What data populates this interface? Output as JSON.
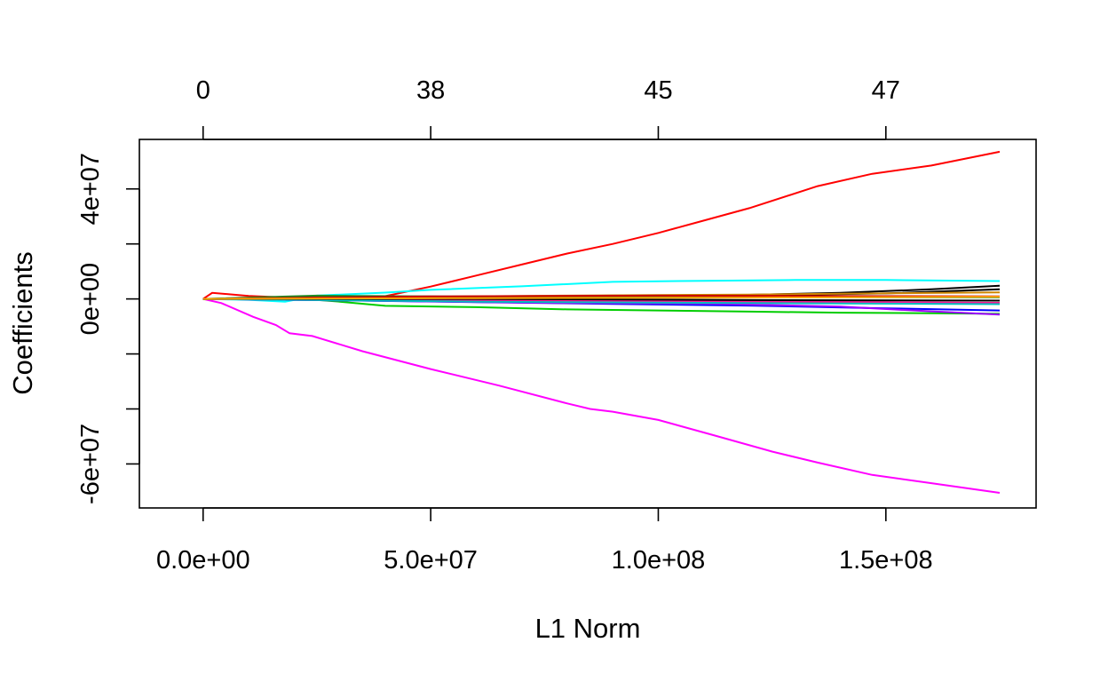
{
  "chart_data": {
    "type": "line",
    "title": "",
    "xlabel": "L1 Norm",
    "ylabel": "Coefficients",
    "xlim": [
      -14000000,
      183000000
    ],
    "ylim": [
      -76000000,
      58000000
    ],
    "x_ticks": [
      0,
      50000000,
      100000000,
      150000000
    ],
    "x_tick_labels": [
      "0.0e+00",
      "5.0e+07",
      "1.0e+08",
      "1.5e+08"
    ],
    "y_ticks": [
      40000000,
      20000000,
      0,
      -20000000,
      -40000000,
      -60000000
    ],
    "y_tick_labels": [
      "4e+07",
      "",
      "0e+00",
      "",
      "",
      "-6e+07"
    ],
    "top_axis": {
      "tick_x": [
        0,
        50000000,
        100000000,
        150000000
      ],
      "labels": [
        "0",
        "38",
        "45",
        "47"
      ]
    },
    "grid": false,
    "legend": "none",
    "series": [
      {
        "color": "#FF0000",
        "x": [
          0,
          2000000,
          10000000,
          20000000,
          40000000,
          50000000,
          60000000,
          70000000,
          80000000,
          90000000,
          100000000,
          110000000,
          120000000,
          135000000,
          147000000,
          160000000,
          175000000
        ],
        "y": [
          0,
          2200000,
          1100000,
          400000,
          1000000,
          4500000,
          8500000,
          12500000,
          16500000,
          20000000,
          24000000,
          28500000,
          33000000,
          41000000,
          45500000,
          48500000,
          53500000
        ]
      },
      {
        "color": "#FF00FF",
        "x": [
          0,
          4000000,
          11000000,
          16000000,
          19000000,
          24000000,
          35000000,
          50000000,
          65000000,
          80000000,
          85000000,
          90000000,
          100000000,
          112000000,
          125000000,
          135000000,
          147000000,
          160000000,
          175000000
        ],
        "y": [
          0,
          -1500000,
          -6500000,
          -9500000,
          -12500000,
          -13500000,
          -19000000,
          -25500000,
          -31500000,
          -38000000,
          -40000000,
          -41000000,
          -44000000,
          -49500000,
          -55500000,
          -59500000,
          -64000000,
          -67000000,
          -70500000
        ]
      },
      {
        "color": "#00FFFF",
        "x": [
          0,
          10000000,
          18000000,
          25000000,
          40000000,
          50000000,
          70000000,
          90000000,
          110000000,
          130000000,
          150000000,
          175000000
        ],
        "y": [
          0,
          -300000,
          -1000000,
          1200000,
          2300000,
          3300000,
          4600000,
          6200000,
          6600000,
          6900000,
          6900000,
          6500000
        ]
      },
      {
        "color": "#00CD00",
        "x": [
          0,
          20000000,
          30000000,
          40000000,
          60000000,
          80000000,
          100000000,
          120000000,
          140000000,
          160000000,
          175000000
        ],
        "y": [
          0,
          300000,
          -1000000,
          -2500000,
          -3000000,
          -3800000,
          -4200000,
          -4600000,
          -5000000,
          -5200000,
          -5400000
        ]
      },
      {
        "color": "#000000",
        "x": [
          0,
          30000000,
          60000000,
          90000000,
          120000000,
          140000000,
          160000000,
          175000000
        ],
        "y": [
          0,
          700000,
          800000,
          1200000,
          1500000,
          2200000,
          3500000,
          4800000
        ]
      },
      {
        "color": "#000000",
        "x": [
          0,
          50000000,
          100000000,
          150000000,
          175000000
        ],
        "y": [
          0,
          500000,
          800000,
          2000000,
          3500000
        ]
      },
      {
        "color": "#0000FF",
        "x": [
          0,
          30000000,
          60000000,
          90000000,
          120000000,
          150000000,
          175000000
        ],
        "y": [
          0,
          -500000,
          -1200000,
          -1800000,
          -2400000,
          -3400000,
          -4200000
        ]
      },
      {
        "color": "#9E00FF",
        "x": [
          0,
          40000000,
          80000000,
          110000000,
          140000000,
          160000000,
          175000000
        ],
        "y": [
          0,
          -700000,
          -1500000,
          -1700000,
          -2800000,
          -4500000,
          -5700000
        ]
      },
      {
        "color": "#CD8500",
        "x": [
          0,
          40000000,
          80000000,
          120000000,
          175000000
        ],
        "y": [
          0,
          700000,
          1200000,
          1600000,
          2400000
        ]
      },
      {
        "color": "#8B4513",
        "x": [
          0,
          50000000,
          100000000,
          150000000,
          175000000
        ],
        "y": [
          0,
          -600000,
          -900000,
          -1200000,
          -1600000
        ]
      },
      {
        "color": "#228B22",
        "x": [
          0,
          25000000,
          50000000,
          100000000,
          175000000
        ],
        "y": [
          0,
          1200000,
          900000,
          700000,
          600000
        ]
      },
      {
        "color": "#FF1493",
        "x": [
          0,
          50000000,
          100000000,
          150000000,
          175000000
        ],
        "y": [
          0,
          -300000,
          -800000,
          -1200000,
          -1400000
        ]
      },
      {
        "color": "#CC0000",
        "x": [
          0,
          50000000,
          100000000,
          150000000,
          175000000
        ],
        "y": [
          0,
          900000,
          1200000,
          1000000,
          900000
        ]
      },
      {
        "color": "#00BFBF",
        "x": [
          0,
          60000000,
          120000000,
          175000000
        ],
        "y": [
          0,
          -1000000,
          -1500000,
          -1900000
        ]
      },
      {
        "color": "#000000",
        "x": [
          0,
          60000000,
          120000000,
          175000000
        ],
        "y": [
          0,
          0,
          -400000,
          -600000
        ]
      },
      {
        "color": "#FFA500",
        "x": [
          0,
          60000000,
          120000000,
          175000000
        ],
        "y": [
          0,
          300000,
          500000,
          800000
        ]
      }
    ]
  }
}
